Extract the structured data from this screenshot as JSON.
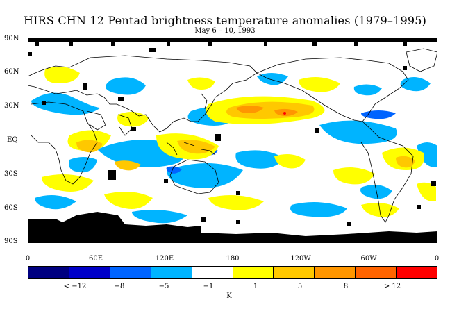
{
  "title": "HIRS CHN 12 Pentad brightness temperature anomalies (1979–1995)",
  "subtitle": "May 6 – 10, 1993",
  "lat_labels": [
    "90N",
    "60N",
    "30N",
    "EQ",
    "30S",
    "60S",
    "90S"
  ],
  "lon_labels": [
    "0",
    "60E",
    "120E",
    "180",
    "120W",
    "60W",
    "0"
  ],
  "colorbar": {
    "colors": [
      "#000080",
      "#0000c8",
      "#0064ff",
      "#00b4ff",
      "#ffffff",
      "#ffff00",
      "#ffc800",
      "#ff9600",
      "#ff6400",
      "#ff0000"
    ],
    "labels": [
      "< −12",
      "−8",
      "−5",
      "−1",
      "1",
      "5",
      "8",
      "> 12"
    ],
    "unit": "K"
  },
  "palette": {
    "ocean": "#ffffff",
    "missing": "#000000",
    "coast": "#000000"
  }
}
